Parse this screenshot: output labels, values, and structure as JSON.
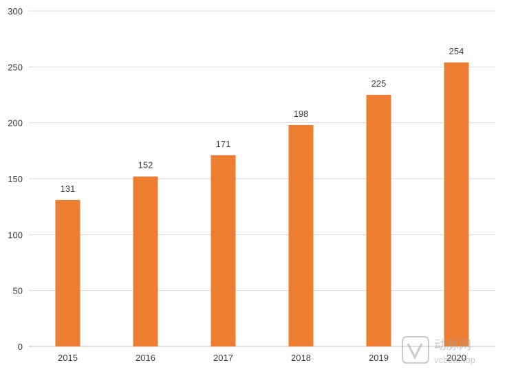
{
  "chart_data": {
    "type": "bar",
    "title": "",
    "xlabel": "",
    "ylabel": "",
    "categories": [
      "2015",
      "2016",
      "2017",
      "2018",
      "2019",
      "2020"
    ],
    "values": [
      131,
      152,
      171,
      198,
      225,
      254
    ],
    "ylim": [
      0,
      300
    ],
    "yticks": [
      0,
      50,
      100,
      150,
      200,
      250,
      300
    ],
    "bar_color": "#ED7D31",
    "grid": true,
    "legend": "none"
  },
  "watermark": {
    "icon": "vcbeat-logo-icon",
    "brand_text": "动脉网",
    "site_text": "vcbeat.top"
  }
}
